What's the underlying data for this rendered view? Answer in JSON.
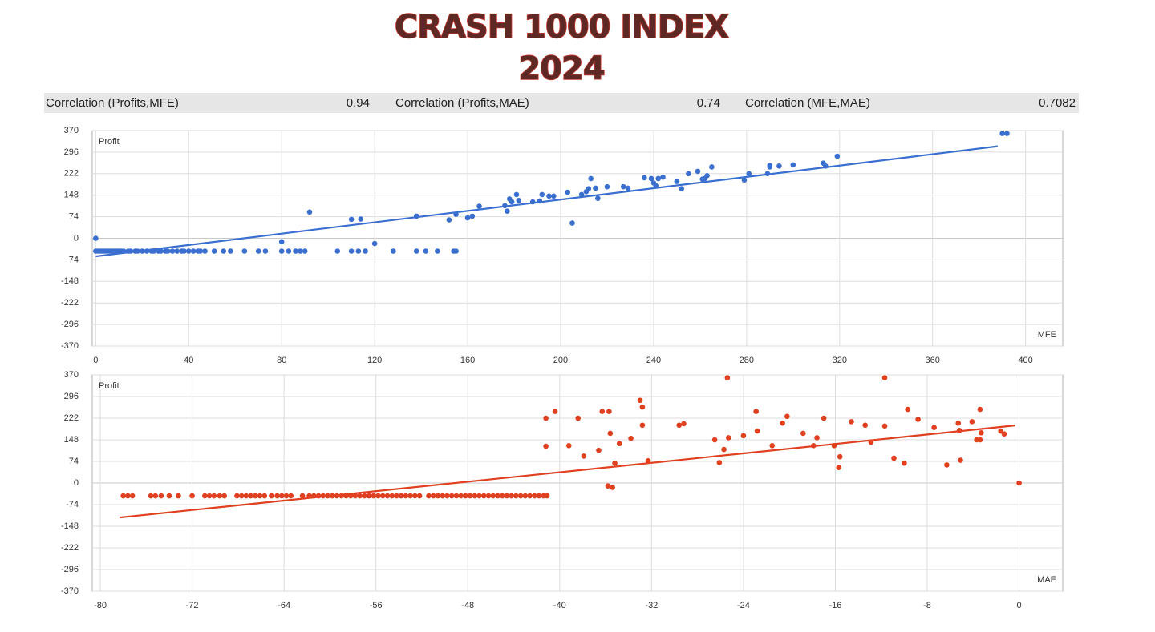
{
  "title": "CRASH 1000 INDEX",
  "subtitle": "2024",
  "stats": [
    {
      "label": "Correlation (Profits,MFE)",
      "value": 0.94
    },
    {
      "label": "Correlation (Profits,MAE)",
      "value": 0.74
    },
    {
      "label": "Correlation (MFE,MAE)",
      "value": 0.7082
    }
  ],
  "chart_data": [
    {
      "type": "scatter",
      "ylabel": "Profit",
      "xlabel": "MFE",
      "color": "#3a6fd0",
      "grid": true,
      "xlim": [
        -1.5,
        416
      ],
      "ylim": [
        -370,
        370
      ],
      "xticks": [
        0,
        40,
        80,
        120,
        160,
        200,
        240,
        280,
        320,
        360,
        400
      ],
      "yticks": [
        370,
        296,
        222,
        148,
        74,
        0,
        -74,
        -148,
        -222,
        -296,
        -370
      ],
      "x": [
        0,
        1,
        2,
        3,
        4,
        5,
        6,
        7,
        8,
        9,
        10,
        11,
        12,
        14,
        15,
        17,
        18,
        20,
        22,
        24,
        25,
        27,
        28,
        30,
        31,
        33,
        35,
        37,
        38,
        40,
        42,
        44,
        45,
        47,
        51,
        55,
        58,
        64,
        70,
        73,
        80,
        83,
        86,
        88,
        90,
        104,
        110,
        113,
        116,
        128,
        138,
        142,
        147,
        154,
        155,
        0,
        80,
        92,
        110,
        114,
        120,
        138,
        152,
        155,
        160,
        162,
        165,
        176,
        177,
        178,
        179,
        181,
        182,
        188,
        191,
        192,
        195,
        197,
        203,
        205,
        209,
        211,
        212,
        213,
        215,
        216,
        220,
        227,
        229,
        236,
        239,
        240,
        241,
        242,
        244,
        250,
        252,
        255,
        259,
        261,
        262,
        263,
        265,
        279,
        281,
        289,
        290,
        290,
        294,
        300,
        313,
        314,
        319,
        390,
        392
      ],
      "values": [
        -44,
        -44,
        -44,
        -44,
        -44,
        -44,
        -44,
        -44,
        -44,
        -44,
        -44,
        -44,
        -44,
        -44,
        -44,
        -44,
        -44,
        -44,
        -44,
        -44,
        -44,
        -44,
        -44,
        -44,
        -44,
        -44,
        -44,
        -44,
        -44,
        -44,
        -44,
        -44,
        -44,
        -44,
        -44,
        -44,
        -44,
        -44,
        -44,
        -44,
        -44,
        -44,
        -44,
        -44,
        -44,
        -44,
        -44,
        -44,
        -44,
        -44,
        -44,
        -44,
        -44,
        -44,
        -44,
        0,
        -12,
        90,
        65,
        66,
        -18,
        76,
        63,
        82,
        70,
        76,
        110,
        112,
        93,
        135,
        125,
        150,
        130,
        125,
        128,
        150,
        145,
        145,
        158,
        52,
        150,
        160,
        170,
        205,
        172,
        137,
        177,
        177,
        172,
        208,
        205,
        190,
        180,
        205,
        210,
        195,
        170,
        222,
        230,
        203,
        205,
        215,
        245,
        200,
        222,
        222,
        250,
        245,
        248,
        252,
        258,
        248,
        282,
        360,
        360
      ],
      "trendline": {
        "x": [
          0,
          388
        ],
        "values": [
          -62,
          316
        ]
      }
    },
    {
      "type": "scatter",
      "ylabel": "Profit",
      "xlabel": "MAE",
      "color": "#e0401f",
      "grid": true,
      "xlim": [
        -80.7,
        3.8
      ],
      "ylim": [
        -370,
        370
      ],
      "xticks": [
        -80,
        -72,
        -64,
        -56,
        -48,
        -40,
        -32,
        -24,
        -16,
        -8,
        0
      ],
      "yticks": [
        370,
        296,
        222,
        148,
        74,
        0,
        -74,
        -148,
        -222,
        -296,
        -370
      ],
      "x": [
        -78,
        -77.6,
        -77.2,
        -75.6,
        -75.2,
        -74.7,
        -74,
        -73.2,
        -72,
        -70.9,
        -70.5,
        -70.1,
        -69.6,
        -69.2,
        -68.1,
        -67.7,
        -67.3,
        -66.9,
        -66.5,
        -66.1,
        -65.7,
        -65.1,
        -64.6,
        -64.2,
        -63.8,
        -63.4,
        -62.4,
        -61.8,
        -61.4,
        -61,
        -60.6,
        -60.2,
        -59.8,
        -59.4,
        -59,
        -58.6,
        -58.2,
        -57.8,
        -57.4,
        -57,
        -56.6,
        -56.2,
        -55.8,
        -55.4,
        -55,
        -54.6,
        -54.2,
        -53.8,
        -53.4,
        -53,
        -52.6,
        -52.2,
        -51.4,
        -51,
        -50.6,
        -50.2,
        -49.8,
        -49.4,
        -49,
        -48.6,
        -48.2,
        -47.8,
        -47.4,
        -47,
        -46.6,
        -46.2,
        -45.8,
        -45.4,
        -45,
        -44.6,
        -44.2,
        -43.8,
        -43.4,
        -43,
        -42.6,
        -42.2,
        -41.8,
        -41.4,
        -41.1,
        0,
        -41.2,
        -41.2,
        -40.4,
        -39.2,
        -38.4,
        -37.9,
        -36.6,
        -36.3,
        -35.8,
        -35.6,
        -35.7,
        -35.4,
        -35.2,
        -34.8,
        -33.8,
        -33,
        -32.8,
        -32.8,
        -32.3,
        -29.6,
        -29.2,
        -26.5,
        -26.1,
        -25.7,
        -25.4,
        -25.3,
        -24,
        -22.9,
        -22.8,
        -21.5,
        -20.6,
        -20.2,
        -18.8,
        -17.9,
        -17.6,
        -17,
        -16.1,
        -15.7,
        -15.6,
        -14.6,
        -13.4,
        -12.9,
        -11.7,
        -11.7,
        -10.9,
        -10,
        -9.7,
        -8.8,
        -7.4,
        -6.3,
        -5.3,
        -5.2,
        -5.1,
        -4.1,
        -3.7,
        -3.4,
        -3.3,
        -3.4,
        -1.6,
        -1.3
      ],
      "values": [
        -44,
        -44,
        -44,
        -44,
        -44,
        -44,
        -44,
        -44,
        -44,
        -44,
        -44,
        -44,
        -44,
        -44,
        -44,
        -44,
        -44,
        -44,
        -44,
        -44,
        -44,
        -44,
        -44,
        -44,
        -44,
        -44,
        -44,
        -44,
        -44,
        -44,
        -44,
        -44,
        -44,
        -44,
        -44,
        -44,
        -44,
        -44,
        -44,
        -44,
        -44,
        -44,
        -44,
        -44,
        -44,
        -44,
        -44,
        -44,
        -44,
        -44,
        -44,
        -44,
        -44,
        -44,
        -44,
        -44,
        -44,
        -44,
        -44,
        -44,
        -44,
        -44,
        -44,
        -44,
        -44,
        -44,
        -44,
        -44,
        -44,
        -44,
        -44,
        -44,
        -44,
        -44,
        -44,
        -44,
        -44,
        -44,
        -44,
        0,
        222,
        126,
        245,
        128,
        222,
        92,
        112,
        245,
        -10,
        170,
        245,
        -15,
        68,
        135,
        153,
        283,
        260,
        198,
        76,
        198,
        203,
        148,
        70,
        115,
        360,
        155,
        162,
        245,
        178,
        128,
        205,
        228,
        170,
        128,
        155,
        222,
        128,
        53,
        90,
        210,
        198,
        140,
        360,
        195,
        85,
        68,
        252,
        218,
        190,
        62,
        205,
        180,
        78,
        210,
        148,
        148,
        172,
        252,
        178,
        168
      ],
      "trendline": {
        "x": [
          -78.3,
          -0.35
        ],
        "values": [
          -118,
          197
        ]
      }
    }
  ]
}
